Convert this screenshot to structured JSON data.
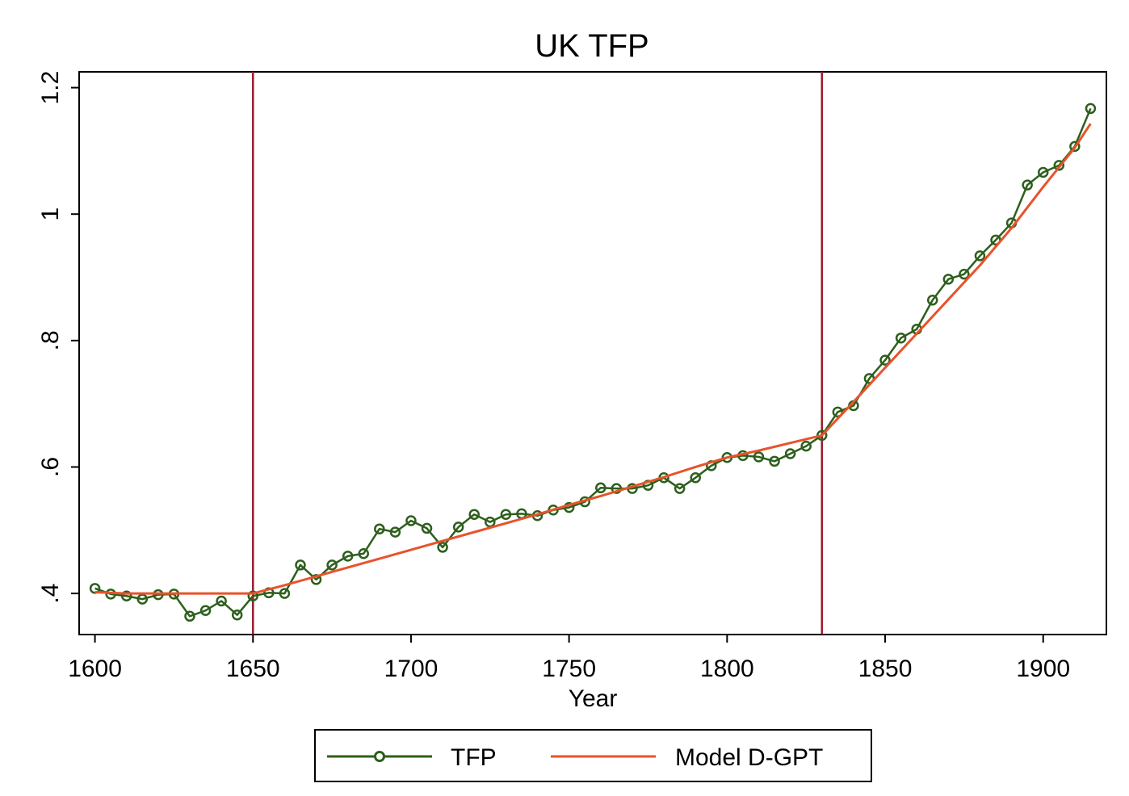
{
  "chart_data": {
    "type": "line",
    "title": "UK TFP",
    "xlabel": "Year",
    "ylabel": "",
    "xlim": [
      1595,
      1920
    ],
    "ylim": [
      0.335,
      1.225
    ],
    "xticks": [
      1600,
      1650,
      1700,
      1750,
      1800,
      1850,
      1900
    ],
    "xtick_labels": [
      "1600",
      "1650",
      "1700",
      "1750",
      "1800",
      "1850",
      "1900"
    ],
    "yticks": [
      0.4,
      0.6,
      0.8,
      1.0,
      1.2
    ],
    "ytick_labels": [
      ".4",
      ".6",
      ".8",
      "1",
      "1.2"
    ],
    "vlines": [
      1650,
      1830
    ],
    "grid": false,
    "legend_position": "bottom",
    "series": [
      {
        "name": "TFP",
        "color": "#2d5f1c",
        "marker": "hollow-circle",
        "x": [
          1600,
          1605,
          1610,
          1615,
          1620,
          1625,
          1630,
          1635,
          1640,
          1645,
          1650,
          1655,
          1660,
          1665,
          1670,
          1675,
          1680,
          1685,
          1690,
          1695,
          1700,
          1705,
          1710,
          1715,
          1720,
          1725,
          1730,
          1735,
          1740,
          1745,
          1750,
          1755,
          1760,
          1765,
          1770,
          1775,
          1780,
          1785,
          1790,
          1795,
          1800,
          1805,
          1810,
          1815,
          1820,
          1825,
          1830,
          1835,
          1840,
          1845,
          1850,
          1855,
          1860,
          1865,
          1870,
          1875,
          1880,
          1885,
          1890,
          1895,
          1900,
          1905,
          1910,
          1915
        ],
        "values": [
          0.408,
          0.399,
          0.396,
          0.391,
          0.398,
          0.399,
          0.364,
          0.373,
          0.388,
          0.366,
          0.396,
          0.401,
          0.4,
          0.445,
          0.422,
          0.445,
          0.459,
          0.463,
          0.502,
          0.497,
          0.515,
          0.503,
          0.473,
          0.505,
          0.525,
          0.513,
          0.525,
          0.526,
          0.523,
          0.532,
          0.536,
          0.545,
          0.567,
          0.566,
          0.566,
          0.571,
          0.583,
          0.566,
          0.583,
          0.602,
          0.615,
          0.618,
          0.616,
          0.609,
          0.621,
          0.633,
          0.65,
          0.687,
          0.697,
          0.74,
          0.769,
          0.804,
          0.818,
          0.864,
          0.897,
          0.905,
          0.934,
          0.959,
          0.986,
          1.046,
          1.066,
          1.077,
          1.107,
          1.167
        ]
      },
      {
        "name": "Model D-GPT",
        "color": "#e8532b",
        "x": [
          1600,
          1610,
          1620,
          1630,
          1640,
          1650,
          1660,
          1670,
          1680,
          1690,
          1700,
          1710,
          1720,
          1730,
          1740,
          1750,
          1760,
          1770,
          1780,
          1790,
          1800,
          1810,
          1820,
          1830,
          1840,
          1850,
          1860,
          1870,
          1880,
          1890,
          1900,
          1910,
          1915
        ],
        "values": [
          0.402,
          0.4,
          0.4,
          0.4,
          0.4,
          0.4,
          0.413,
          0.427,
          0.441,
          0.455,
          0.469,
          0.483,
          0.497,
          0.511,
          0.525,
          0.54,
          0.554,
          0.569,
          0.584,
          0.6,
          0.615,
          0.626,
          0.638,
          0.65,
          0.703,
          0.757,
          0.811,
          0.865,
          0.919,
          0.978,
          1.043,
          1.105,
          1.143
        ]
      }
    ]
  }
}
